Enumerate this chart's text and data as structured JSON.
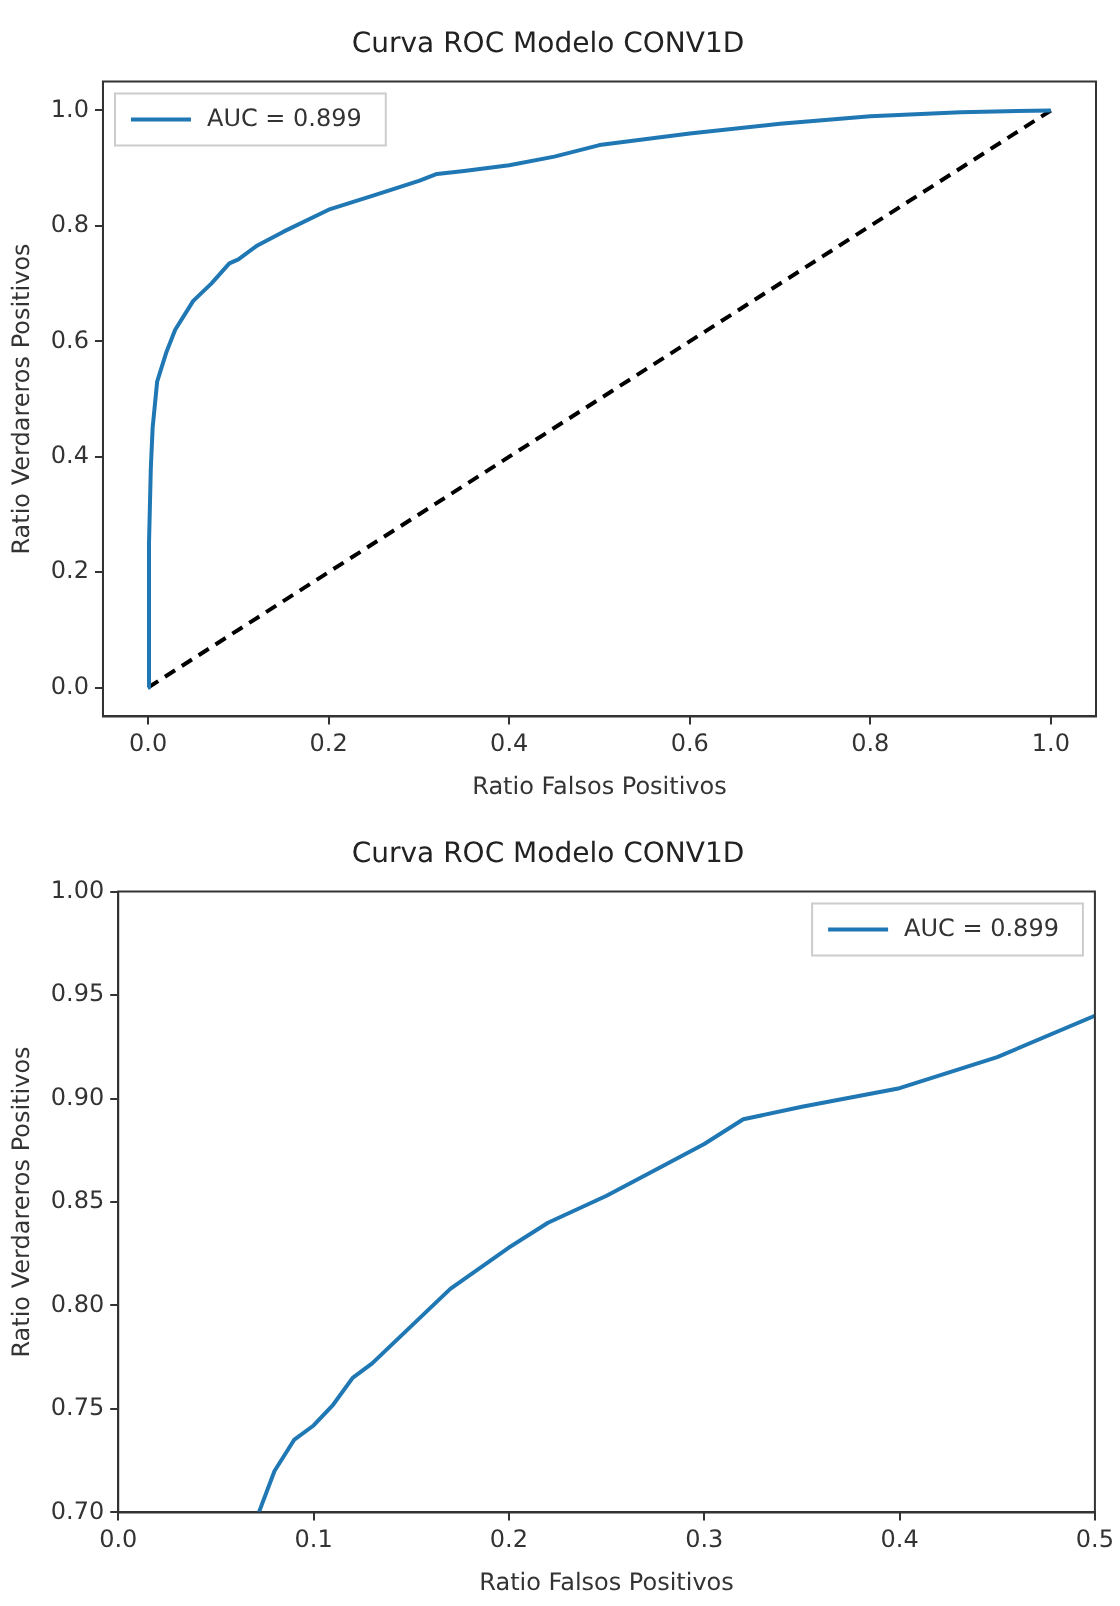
{
  "chart_data": [
    {
      "type": "line",
      "title": "Curva ROC Modelo CONV1D",
      "xlabel": "Ratio Falsos Positivos",
      "ylabel": "Ratio Verdareros Positivos",
      "legend": "top left",
      "grid": false,
      "xlim": [
        -0.05,
        1.05
      ],
      "ylim": [
        -0.05,
        1.05
      ],
      "xticks": [
        {
          "value": 0,
          "label": "0.0"
        },
        {
          "value": 0.2,
          "label": "0.2"
        },
        {
          "value": 0.4,
          "label": "0.4"
        },
        {
          "value": 0.6,
          "label": "0.6"
        },
        {
          "value": 0.8,
          "label": "0.8"
        },
        {
          "value": 1,
          "label": "1.0"
        }
      ],
      "yticks": [
        {
          "value": 0,
          "label": "0.0"
        },
        {
          "value": 0.2,
          "label": "0.2"
        },
        {
          "value": 0.4,
          "label": "0.4"
        },
        {
          "value": 0.6,
          "label": "0.6"
        },
        {
          "value": 0.8,
          "label": "0.8"
        },
        {
          "value": 1,
          "label": "1.0"
        }
      ],
      "series": [
        {
          "name": "AUC = 0.899",
          "color": "#1f77b4",
          "line_style": "solid",
          "x": [
            0,
            0.001,
            0.003,
            0.005,
            0.01,
            0.02,
            0.03,
            0.05,
            0.07,
            0.09,
            0.1,
            0.12,
            0.15,
            0.2,
            0.25,
            0.3,
            0.32,
            0.35,
            0.4,
            0.45,
            0.5,
            0.6,
            0.7,
            0.8,
            0.9,
            1
          ],
          "values": [
            0,
            0.25,
            0.38,
            0.45,
            0.53,
            0.58,
            0.62,
            0.67,
            0.7,
            0.735,
            0.742,
            0.765,
            0.79,
            0.828,
            0.853,
            0.878,
            0.89,
            0.895,
            0.905,
            0.92,
            0.94,
            0.96,
            0.977,
            0.99,
            0.997,
            1
          ]
        },
        {
          "color": "#000000",
          "line_style": "dashed",
          "x": [
            0,
            1
          ],
          "values": [
            0,
            1
          ]
        }
      ]
    },
    {
      "type": "line",
      "title": "Curva ROC Modelo CONV1D",
      "xlabel": "Ratio Falsos Positivos",
      "ylabel": "Ratio Verdareros Positivos",
      "legend": "top right",
      "grid": false,
      "xlim": [
        0,
        0.5
      ],
      "ylim": [
        0.7,
        1
      ],
      "xticks": [
        {
          "value": 0,
          "label": "0.0"
        },
        {
          "value": 0.1,
          "label": "0.1"
        },
        {
          "value": 0.2,
          "label": "0.2"
        },
        {
          "value": 0.3,
          "label": "0.3"
        },
        {
          "value": 0.4,
          "label": "0.4"
        },
        {
          "value": 0.5,
          "label": "0.5"
        }
      ],
      "yticks": [
        {
          "value": 0.7,
          "label": "0.70"
        },
        {
          "value": 0.75,
          "label": "0.75"
        },
        {
          "value": 0.8,
          "label": "0.80"
        },
        {
          "value": 0.85,
          "label": "0.85"
        },
        {
          "value": 0.9,
          "label": "0.90"
        },
        {
          "value": 0.95,
          "label": "0.95"
        },
        {
          "value": 1,
          "label": "1.00"
        }
      ],
      "series": [
        {
          "name": "AUC = 0.899",
          "color": "#1f77b4",
          "line_style": "solid",
          "x": [
            0.072,
            0.08,
            0.09,
            0.1,
            0.11,
            0.12,
            0.13,
            0.15,
            0.17,
            0.2,
            0.22,
            0.25,
            0.28,
            0.3,
            0.32,
            0.35,
            0.4,
            0.45,
            0.5
          ],
          "values": [
            0.7,
            0.72,
            0.735,
            0.742,
            0.752,
            0.765,
            0.772,
            0.79,
            0.808,
            0.828,
            0.84,
            0.853,
            0.868,
            0.878,
            0.89,
            0.896,
            0.905,
            0.92,
            0.94
          ]
        }
      ]
    }
  ]
}
